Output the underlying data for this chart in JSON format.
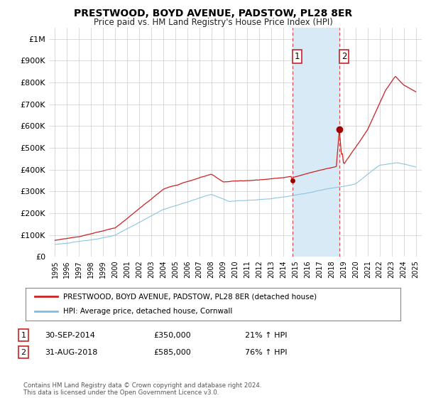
{
  "title": "PRESTWOOD, BOYD AVENUE, PADSTOW, PL28 8ER",
  "subtitle": "Price paid vs. HM Land Registry's House Price Index (HPI)",
  "ylabel_ticks": [
    "£0",
    "£100K",
    "£200K",
    "£300K",
    "£400K",
    "£500K",
    "£600K",
    "£700K",
    "£800K",
    "£900K",
    "£1M"
  ],
  "ytick_values": [
    0,
    100000,
    200000,
    300000,
    400000,
    500000,
    600000,
    700000,
    800000,
    900000,
    1000000
  ],
  "ylim": [
    0,
    1050000
  ],
  "xlim_start": 1994.5,
  "xlim_end": 2025.5,
  "legend_line1": "PRESTWOOD, BOYD AVENUE, PADSTOW, PL28 8ER (detached house)",
  "legend_line2": "HPI: Average price, detached house, Cornwall",
  "annotation1_label": "1",
  "annotation1_date": "30-SEP-2014",
  "annotation1_price": "£350,000",
  "annotation1_hpi": "21% ↑ HPI",
  "annotation2_label": "2",
  "annotation2_date": "31-AUG-2018",
  "annotation2_price": "£585,000",
  "annotation2_hpi": "76% ↑ HPI",
  "footer": "Contains HM Land Registry data © Crown copyright and database right 2024.\nThis data is licensed under the Open Government Licence v3.0.",
  "sale1_x": 2014.75,
  "sale1_y": 350000,
  "sale2_x": 2018.67,
  "sale2_y": 585000,
  "hpi_color": "#7fbfdf",
  "price_color": "#cc2222",
  "sale_dot_color": "#990000",
  "highlight_color": "#d8eaf5",
  "grid_color": "#cccccc",
  "background_color": "#ffffff"
}
